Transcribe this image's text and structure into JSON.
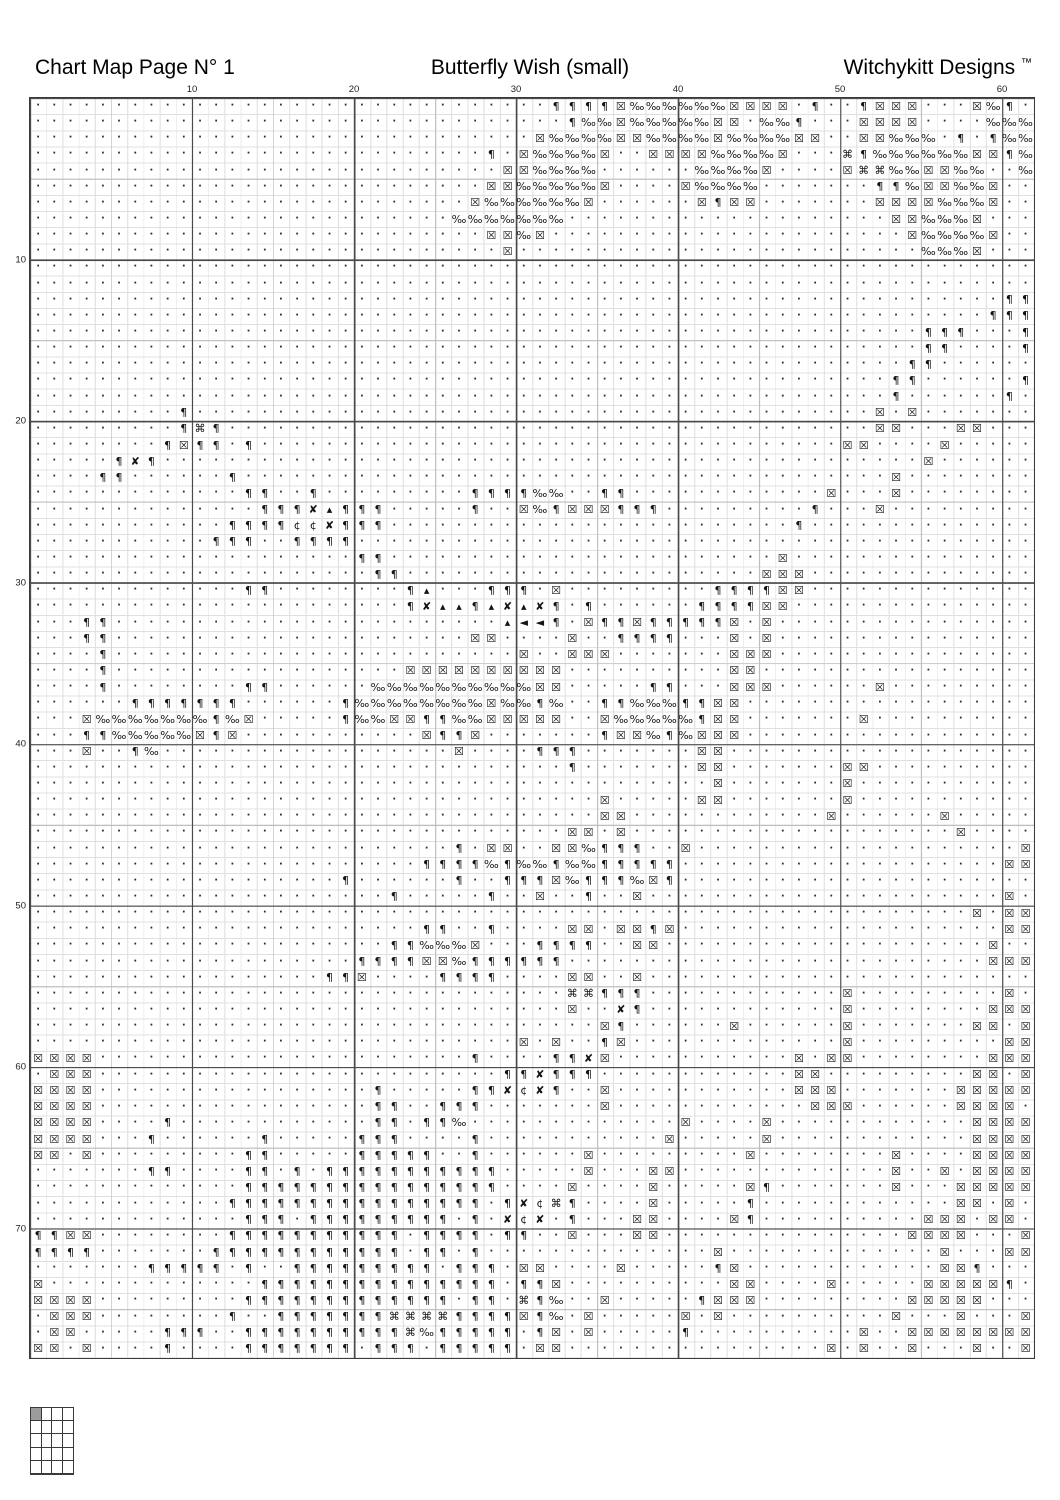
{
  "header": {
    "left": "Chart Map Page N° 1",
    "center": "Butterfly Wish (small)",
    "right": "Witchykitt Designs",
    "right_tm": "™"
  },
  "axis": {
    "top_labels": [
      10,
      20,
      30,
      40,
      50,
      60
    ],
    "left_labels": [
      10,
      20,
      30,
      40,
      50,
      60,
      70
    ]
  },
  "grid": {
    "cols": 62,
    "rows": 78,
    "legend": {
      ".": "·",
      "P": "¶",
      "m": "‰",
      "E": "☒",
      "C": "⌘",
      "X": "✘",
      "c": "¢",
      "A": "▴",
      "L": "◄"
    },
    "cells": [
      "................................PPPPEmmmmmmEEEE.P..PEEE...EmP.",
      ".................................PmmEmmmmmEE.mmP...EEEE....mmm",
      "...............................EmmmmEEmmmmEmmmmEE..EEmmm.P.Pmm",
      "............................P.EmmmmE..EEEEmmmmE...CPmmmmmmEEPm",
      ".............................EEmmmm......mmmmE....ECCmmEEmm..m",
      "............................EEmmmmmE....Emmmm.......PPmEEmmE..",
      "...........................EmmmmmmE......EPEE.......EEEEmmmE..",
      "..........................mmmmmmm....................EEmmmE...",
      "............................EEmE......................EmmmmE..",
      ".............................E.........................mmmE...",
      "..............................................................",
      "..............................................................",
      "............................................................PP",
      "...........................................................PPP",
      ".......................................................PPP...P",
      ".......................................................PP....P",
      "......................................................PP......",
      ".....................................................PP......P",
      ".....................................................P......P.",
      ".........P..........................................E.E.......",
      ".........PCP........................................EE...EE...",
      "........PEPP.P....................................EE....E.....",
      ".....PXP...............................................E......",
      "....PP......P........................................E........",
      ".............PP..P.........PPPPmm..PP............E...E........",
      "..............PPPXAPPP.....P..EmPEEEPPP.........P...E.........",
      "............PPPPccXPPP.........................P..............",
      "...........PPP..PPPP..........................................",
      "....................PP........................E...............",
      ".....................PP......................EEE..............",
      ".............PP........PA...PPP.E.........PPPPEE..............",
      ".......................PXAAPAXAXP.P......PPPPEE...............",
      "...PP........................ALLP.EPPEPPPPPE.E................",
      "...PP......................EE....E..PPPP...E.E................",
      "....P.........................E..EEE.......EEE................",
      "....P..................EEEEEEEEEE..........EE.................",
      "....P........PP......mmmmmmmmmmEE.....PP...EEE......E.........",
      "......PPPPPPP......PmmmmmmmmEmmPm..PPmmmPPEE..................",
      "...EmmmmmmmPmE.....PmmEEPPmmEEEEE..EmmmmmPEE.......E..........",
      "...PPmmmmmEPE...........EPPE.......PEEmPmEEE..................",
      "...E..Pm..................E....PPP.......EE...................",
      ".................................P.......EE.......EE..........",
      "..........................................E.......E...........",
      "...................................E.....EE.......E...........",
      "...................................EE............E......E.....",
      ".................................EE.E....................E....",
      "..........................P.EE..EEmPPP..E....................E",
      "........................PPPPmPmmPmmPPPPP....................EE",
      "...................P......P..PPPEmPPPmEP......................",
      "......................P.....P..E..P..E......................E.",
      "..........................................................E.EE",
      "........................PP..P....EE.EEPE....................EE",
      "......................PPmmmE...PPPP..EE....................E..",
      "....................PPPPEEmPPPPPP..........................EEE",
      "..................PPE....PPPP....EE..E........................",
      ".................................CCPPP............E.........E.",
      ".................................E..XP............E........EEE",
      "...................................EP......E......E.......EE.E",
      "..............................E.E..PE.............E.........EE",
      "EEEE.......................P....PPXE...........E.EE........EEE",
      ".EEE.........................PPXPPP............EE.........EE.E",
      "EEEE.................P.....PPXcXP..E...........EEE.......EEEEE",
      "EEEE.................PP..PPP.......E............EEE......EEEE.",
      "EEEE....P............PP.PPm.............E....E............EEEE",
      "EEEE...P......P.....PPP....P...........E.....E............EEEE",
      "EE.E.........PP.....PPPPP..P......E.........E........E....EEEE",
      ".......PP....PP.P.PPPPPPPPPPP.....E...EE.............E..E.EEEE",
      ".............PPPPPPPPPPPPPPPP....E....E.....EP.......E...EEEEE",
      "............PPPPPPPPPPPPPPPP.PXcCP....E.....P............EE.E.",
      ".............PPP.PPPPPPPPP.P.XcX.P...EE....EP..........EEE.EE",
      "PPEE........PPPPPPPPPPP.PPPP.PP..E...EE...............EEEE...E",
      "PPPP.......PPPPPPPPPPPP.PP.P..............E.............E...EE",
      ".......PPPPP.P..PPPPPPPPP.PPP.EE....E.....PE............EEP...",
      "E.............PPPPPPPPPPPPPPP.PPE..........EE....E.....EEEEEP.",
      "EEEE.........PPPPPPPPPPPPP.PP.CPm..E.....PEEE.........EEEEE...",
      ".EEE........P..PPPPPPPCCCCPPPPEPm.E.....E.E..........E...E...E",
      ".EE.....PPP..PPPPPPPPPPCmPPPPP.PE.E.....P..........E..EEEEEEEE",
      "EE.E....P....PPPPPPP.PPP.PPPPP.EE................E.E..E...E..E"
    ]
  },
  "page_map": {
    "cols": 4,
    "rows": 5,
    "current_page_index": 0,
    "fill_color": "#9c9c9c"
  },
  "colors": {
    "paper": "#ffffff",
    "major_line": "#4a4a4a",
    "mid_line": "#bdbdbd",
    "fine_line": "#e0e0e0",
    "symbol": "#141414"
  }
}
